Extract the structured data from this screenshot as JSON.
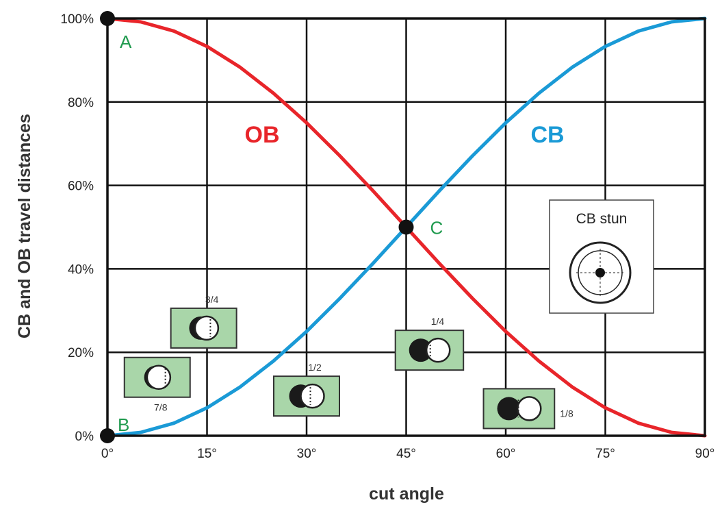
{
  "chart_data": {
    "type": "line",
    "xlabel": "cut angle",
    "ylabel": "CB and OB travel distances",
    "xlim": [
      0,
      90
    ],
    "ylim": [
      0,
      100
    ],
    "x_ticks": [
      "0°",
      "15°",
      "30°",
      "45°",
      "60°",
      "75°",
      "90°"
    ],
    "y_ticks": [
      "0%",
      "20%",
      "40%",
      "60%",
      "80%",
      "100%"
    ],
    "grid": true,
    "x": [
      0,
      5,
      10,
      15,
      20,
      25,
      30,
      35,
      40,
      45,
      50,
      55,
      60,
      65,
      70,
      75,
      80,
      85,
      90
    ],
    "series": [
      {
        "name": "OB",
        "color": "#e8252a",
        "values": [
          100,
          99.2,
          97.0,
          93.3,
          88.3,
          82.1,
          75.0,
          67.1,
          58.7,
          50.0,
          41.3,
          32.9,
          25.0,
          17.9,
          11.7,
          6.7,
          3.0,
          0.8,
          0
        ]
      },
      {
        "name": "CB",
        "color": "#1a9ad6",
        "values": [
          0,
          0.8,
          3.0,
          6.7,
          11.7,
          17.9,
          25.0,
          32.9,
          41.3,
          50.0,
          58.7,
          67.1,
          75.0,
          82.1,
          88.3,
          93.3,
          97.0,
          99.2,
          100
        ]
      }
    ],
    "points": [
      {
        "label": "A",
        "x": 0,
        "y": 100
      },
      {
        "label": "B",
        "x": 0,
        "y": 0
      },
      {
        "label": "C",
        "x": 45,
        "y": 50
      }
    ],
    "label_color": "#1f9a4e",
    "ball_diagrams": [
      {
        "fraction": "7/8",
        "x": 7.5,
        "y": 14,
        "overlap": 0.875
      },
      {
        "fraction": "3/4",
        "x": 14.5,
        "y": 25.8,
        "overlap": 0.75
      },
      {
        "fraction": "1/2",
        "x": 30,
        "y": 9.5,
        "overlap": 0.5
      },
      {
        "fraction": "1/4",
        "x": 48.5,
        "y": 20.5,
        "overlap": 0.25
      },
      {
        "fraction": "1/8",
        "x": 62,
        "y": 6.5,
        "overlap": 0.125
      }
    ],
    "inset": {
      "title": "CB stun"
    }
  }
}
